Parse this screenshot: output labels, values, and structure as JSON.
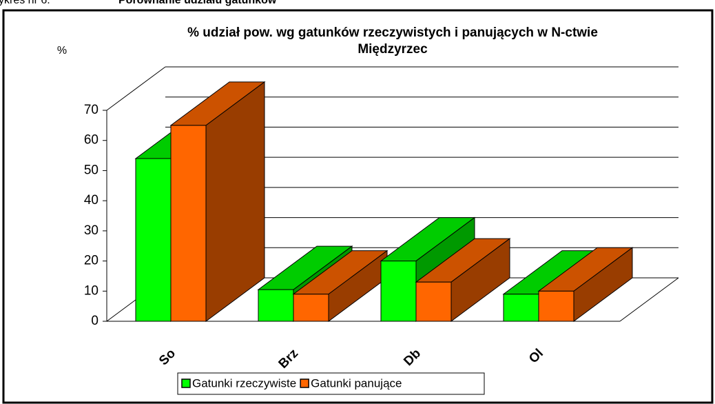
{
  "chart_data": {
    "type": "bar3d",
    "caption_number": "ykres nr 6.",
    "caption_title": "Porównanie udziału gatunków",
    "title": "% udział pow. wg gatunków rzeczywistych i panujących w N-ctwie Międzyrzec",
    "ylabel": "%",
    "categories": [
      "So",
      "Brz",
      "Db",
      "Ol"
    ],
    "series": [
      {
        "name": "Gatunki rzeczywiste",
        "color": "#00ff00",
        "values": [
          54,
          10.5,
          20,
          9
        ]
      },
      {
        "name": "Gatunki panujące",
        "color": "#ff6600",
        "values": [
          65,
          9,
          13,
          10
        ]
      }
    ],
    "ylim": [
      0,
      70
    ],
    "yticks": [
      0,
      10,
      20,
      30,
      40,
      50,
      60,
      70
    ],
    "grid": true,
    "legend": "bottom"
  }
}
